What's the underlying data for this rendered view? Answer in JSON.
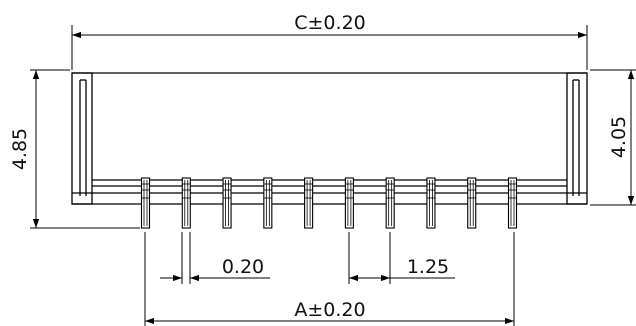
{
  "dimensions": {
    "overall_width": "C±0.20",
    "overall_height": "4.85",
    "body_height": "4.05",
    "pin_width": "0.20",
    "pin_pitch": "1.25",
    "pin_span": "A±0.20"
  },
  "pin_count": 10,
  "colors": {
    "line": "#000000",
    "background": "#ffffff"
  }
}
